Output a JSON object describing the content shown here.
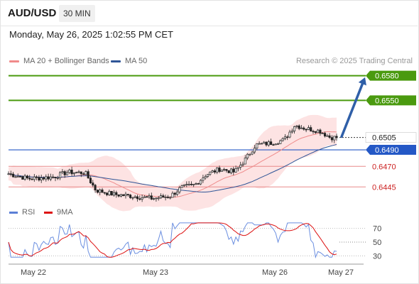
{
  "chart_data": {
    "type": "candlestick",
    "instrument": "AUD/USD",
    "timeframe": "30 MIN",
    "timestamp": "Monday, May 26, 2025 1:02:55 PM CET",
    "credit": "Research © 2025 Trading Central",
    "legend": [
      {
        "label": "MA 20 + Bollinger Bands",
        "color": "#f08a8a"
      },
      {
        "label": "MA 50",
        "color": "#2f5597"
      }
    ],
    "price_range": [
      0.6422,
      0.6596
    ],
    "levels": [
      {
        "label": "0.6580",
        "value": 0.658,
        "kind": "resistance",
        "color": "#4a9a0f"
      },
      {
        "label": "0.6550",
        "value": 0.655,
        "kind": "resistance",
        "color": "#4a9a0f"
      },
      {
        "label": "0.6505",
        "value": 0.6505,
        "kind": "last",
        "color": "#222222"
      },
      {
        "label": "0.6490",
        "value": 0.649,
        "kind": "pivot",
        "color": "#2458c6"
      },
      {
        "label": "0.6470",
        "value": 0.647,
        "kind": "support",
        "color": "#cc2222"
      },
      {
        "label": "0.6445",
        "value": 0.6445,
        "kind": "support",
        "color": "#cc2222"
      }
    ],
    "projection": {
      "from_price": 0.6506,
      "to_price": 0.6578
    },
    "x_labels": [
      "May 22",
      "May 23",
      "May 26",
      "May 27"
    ],
    "rsi": {
      "legend": [
        {
          "label": "RSI",
          "color": "#5b7fd6"
        },
        {
          "label": "9MA",
          "color": "#dd1111"
        }
      ],
      "ticks": [
        70,
        50,
        30
      ],
      "range": [
        20,
        80
      ]
    }
  }
}
